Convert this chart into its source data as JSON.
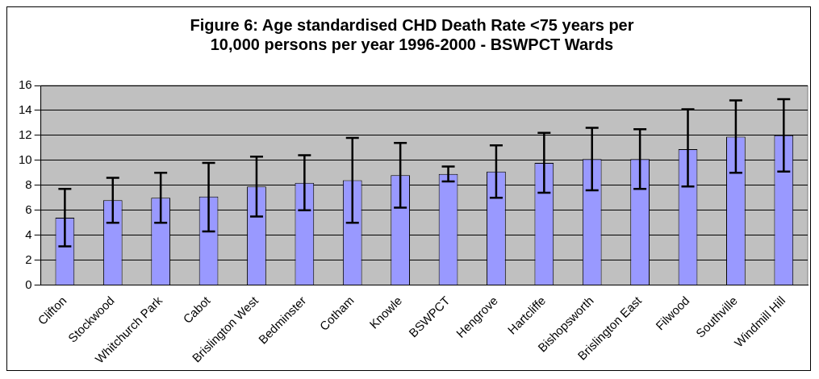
{
  "chart_data": {
    "type": "bar",
    "title": [
      "Figure 6: Age standardised CHD Death Rate <75 years per",
      "10,000 persons per year 1996-2000 - BSWPCT Wards"
    ],
    "categories": [
      "Clifton",
      "Stockwood",
      "Whitchurch Park",
      "Cabot",
      "Brislington West",
      "Bedminster",
      "Cotham",
      "Knowle",
      "BSWPCT",
      "Hengrove",
      "Hartcliffe",
      "Bishopsworth",
      "Brislington East",
      "Filwood",
      "Southville",
      "Windmill Hill"
    ],
    "values": [
      5.4,
      6.8,
      7.0,
      7.1,
      7.9,
      8.2,
      8.4,
      8.8,
      8.9,
      9.1,
      9.8,
      10.1,
      10.1,
      10.9,
      11.9,
      12.0
    ],
    "errors": [
      [
        3.1,
        7.7
      ],
      [
        5.0,
        8.6
      ],
      [
        5.0,
        9.0
      ],
      [
        4.3,
        9.8
      ],
      [
        5.5,
        10.3
      ],
      [
        6.0,
        10.4
      ],
      [
        5.0,
        11.8
      ],
      [
        6.2,
        11.4
      ],
      [
        8.3,
        9.5
      ],
      [
        7.0,
        11.2
      ],
      [
        7.4,
        12.2
      ],
      [
        7.6,
        12.6
      ],
      [
        7.7,
        12.5
      ],
      [
        7.9,
        14.1
      ],
      [
        9.0,
        14.8
      ],
      [
        9.1,
        14.9
      ]
    ],
    "color": "#9999ff",
    "ylim": [
      0,
      16
    ],
    "yticks": [
      0,
      2,
      4,
      6,
      8,
      10,
      12,
      14,
      16
    ],
    "grid": "y",
    "legend": false
  }
}
